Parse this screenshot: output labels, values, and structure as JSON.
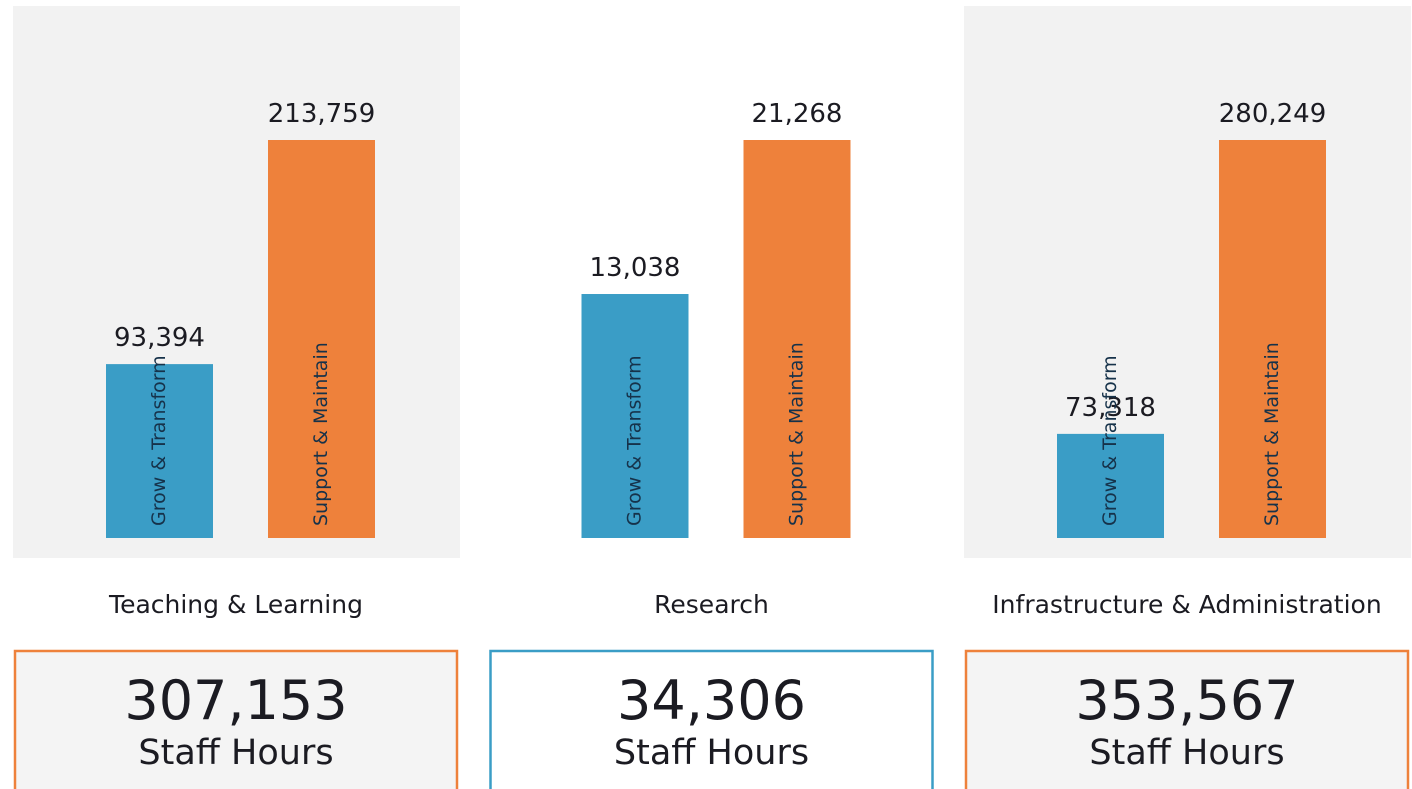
{
  "chart_data": [
    {
      "type": "bar",
      "title": "Teaching & Learning",
      "categories": [
        "Grow & Transform",
        "Support & Maintain"
      ],
      "values": [
        93394,
        213759
      ],
      "value_labels": [
        "93,394",
        "213,759"
      ],
      "colors": [
        "#3a9dc6",
        "#ee813b"
      ],
      "total": "307,153",
      "total_unit": "Staff Hours"
    },
    {
      "type": "bar",
      "title": "Research",
      "categories": [
        "Grow & Transform",
        "Support & Maintain"
      ],
      "values": [
        13038,
        21268
      ],
      "value_labels": [
        "13,038",
        "21,268"
      ],
      "colors": [
        "#3a9dc6",
        "#ee813b"
      ],
      "total": "34,306",
      "total_unit": "Staff Hours"
    },
    {
      "type": "bar",
      "title": "Infrastructure & Administration",
      "categories": [
        "Grow & Transform",
        "Support & Maintain"
      ],
      "values": [
        73318,
        280249
      ],
      "value_labels": [
        "73,318",
        "280,249"
      ],
      "colors": [
        "#3a9dc6",
        "#ee813b"
      ],
      "total": "353,567",
      "total_unit": "Staff Hours"
    }
  ]
}
